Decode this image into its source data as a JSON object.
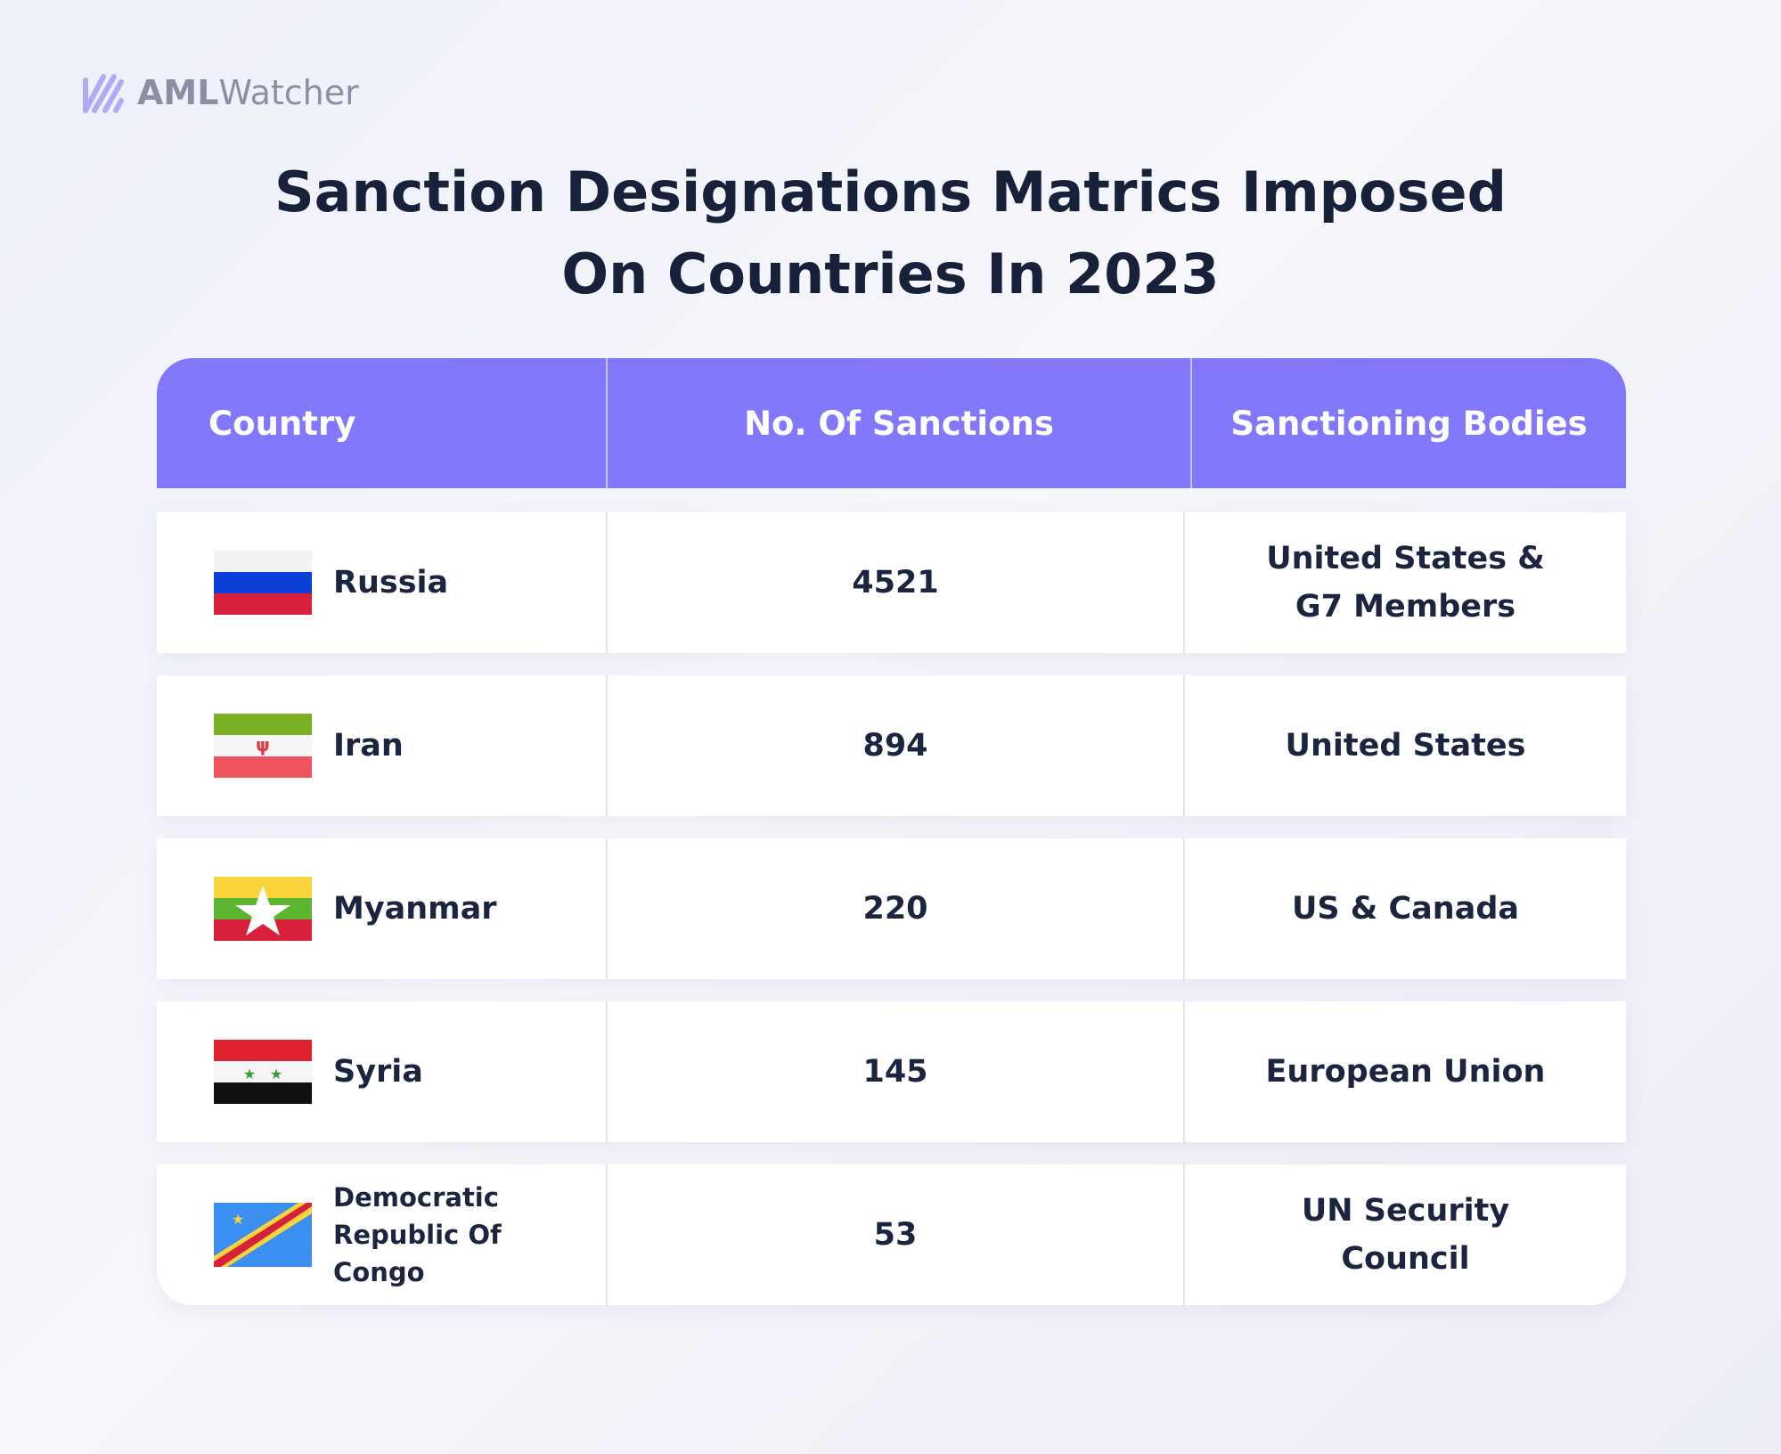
{
  "logo": {
    "bold": "AML",
    "light": "Watcher"
  },
  "header": {
    "title_lines": [
      "Sanction Designations Matrics Imposed",
      "On Countries In 2023"
    ]
  },
  "table": {
    "columns": [
      "Country",
      "No. Of Sanctions",
      "Sanctioning Bodies"
    ],
    "rows": [
      [
        "Russia",
        "4521",
        "United States & G7 Members"
      ],
      [
        "Iran",
        "894",
        "United States"
      ],
      [
        "Myanmar",
        "220",
        "US & Canada"
      ],
      [
        "Syria",
        "145",
        "European Union"
      ],
      [
        "Democratic Republic Of Congo",
        "53",
        "UN Security Council"
      ]
    ]
  }
}
